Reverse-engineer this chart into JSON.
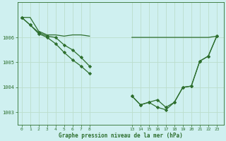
{
  "bg_color": "#cff0f0",
  "grid_color": "#bbddcc",
  "line_color": "#2d6e2d",
  "marker_color": "#2d6e2d",
  "xlabel": "Graphe pression niveau de la mer (hPa)",
  "xlabel_color": "#2d6e2d",
  "tick_color": "#2d6e2d",
  "series1_left": {
    "x": [
      0,
      1,
      2,
      3,
      4,
      5,
      6,
      7,
      8
    ],
    "y": [
      1006.8,
      1006.8,
      1006.25,
      1006.1,
      1006.1,
      1006.05,
      1006.1,
      1006.1,
      1006.05
    ]
  },
  "series1_right": {
    "x": [
      13,
      14,
      15,
      16,
      17,
      18,
      19,
      20,
      21,
      22,
      23
    ],
    "y": [
      1006.0,
      1006.0,
      1006.0,
      1006.0,
      1006.0,
      1006.0,
      1006.0,
      1006.0,
      1006.0,
      1006.0,
      1006.05
    ]
  },
  "series2_left": {
    "x": [
      0,
      1,
      2,
      3,
      4,
      5,
      6,
      7,
      8
    ],
    "y": [
      1006.8,
      1006.5,
      1006.2,
      1006.05,
      1006.0,
      1005.7,
      1005.5,
      1005.2,
      1004.85
    ]
  },
  "series2_right": {
    "x": [
      13,
      14,
      15,
      16,
      17,
      18,
      19,
      20,
      21,
      22,
      23
    ],
    "y": [
      1003.65,
      1003.3,
      1003.4,
      1003.5,
      1003.2,
      1003.4,
      1004.0,
      1004.05,
      1005.05,
      1005.25,
      1006.05
    ]
  },
  "series3_left": {
    "x": [
      0,
      1,
      2,
      3,
      4,
      5,
      6,
      7,
      8
    ],
    "y": [
      1006.8,
      1006.5,
      1006.15,
      1006.0,
      1005.75,
      1005.4,
      1005.1,
      1004.85,
      1004.55
    ]
  },
  "series3_right": {
    "x": [
      13,
      14,
      15,
      16,
      17,
      18,
      19,
      20,
      21,
      22,
      23
    ],
    "y": [
      1003.65,
      1003.3,
      1003.4,
      1003.2,
      1003.1,
      1003.4,
      1004.0,
      1004.05,
      1005.05,
      1005.25,
      1006.05
    ]
  },
  "xtick_labels": [
    "0",
    "1",
    "2",
    "3",
    "4",
    "5",
    "6",
    "7",
    "8",
    "13",
    "14",
    "15",
    "16",
    "17",
    "18",
    "19",
    "20",
    "21",
    "22",
    "23"
  ],
  "xtick_pos": [
    0,
    1,
    2,
    3,
    4,
    5,
    6,
    7,
    8,
    13,
    14,
    15,
    16,
    17,
    18,
    19,
    20,
    21,
    22,
    23
  ],
  "yticks": [
    1003,
    1004,
    1005,
    1006
  ],
  "ylim": [
    1002.5,
    1007.4
  ],
  "xlim": [
    -0.5,
    23.8
  ]
}
